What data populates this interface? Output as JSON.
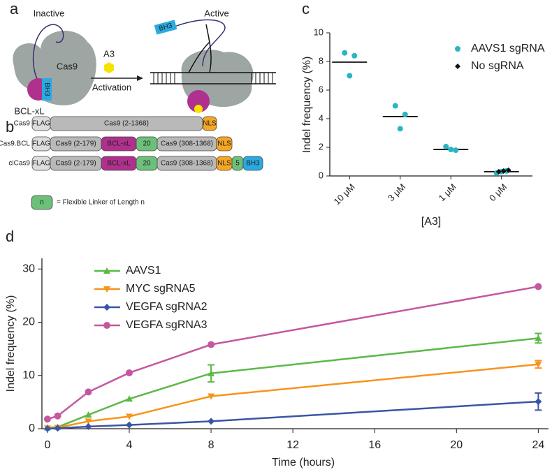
{
  "panel_labels": [
    "a",
    "b",
    "c",
    "d"
  ],
  "panel_a": {
    "inactive": "Inactive",
    "active": "Active",
    "cas9": "Cas9",
    "bh3_left": "BH3",
    "bcl": "BCL-xL",
    "a3": "A3",
    "activation": "Activation",
    "bh3_right": "BH3"
  },
  "panel_b": {
    "rows": [
      {
        "label": "Cas9",
        "segments": [
          "FLAG",
          "Cas9 (2-1368)",
          "NLS"
        ]
      },
      {
        "label": "Cas9.BCL",
        "segments": [
          "FLAG",
          "Cas9 (2-179)",
          "BCL-xL",
          "20",
          "Cas9 (308-1368)",
          "NLS"
        ]
      },
      {
        "label": "ciCas9",
        "segments": [
          "FLAG",
          "Cas9 (2-179)",
          "BCL-xL",
          "20",
          "Cas9 (308-1368)",
          "NLS",
          "5",
          "BH3"
        ]
      }
    ],
    "legend_symbol": "n",
    "legend_text": "= Flexible Linker of Length n"
  },
  "chart_data": [
    {
      "type": "dot",
      "y_label": "Indel frequency (%)",
      "x_label": "[A3]",
      "categories": [
        "10 μM",
        "3 μM",
        "1 μM",
        "0 μM"
      ],
      "ylim": [
        0,
        10
      ],
      "yticks": [
        0,
        2,
        4,
        6,
        8,
        10
      ],
      "legend": "upper right",
      "means": [
        7.95,
        4.15,
        1.85,
        0.3
      ],
      "series": [
        {
          "name": "AAVS1 sgRNA",
          "color": "#2bb5c2",
          "marker": "circle",
          "values": [
            [
              8.6,
              8.4,
              7.0
            ],
            [
              4.9,
              4.3,
              3.3
            ],
            [
              2.05,
              1.8,
              1.85
            ],
            [
              0.2,
              0.35,
              0.3
            ]
          ]
        },
        {
          "name": "No sgRNA",
          "color": "#111111",
          "marker": "diamond",
          "values": [
            null,
            null,
            null,
            [
              0.3,
              0.4,
              0.35
            ]
          ]
        }
      ]
    },
    {
      "type": "line",
      "x_label": "Time (hours)",
      "y_label": "Indel frequency (%)",
      "x": [
        0,
        0.5,
        2,
        4,
        8,
        24
      ],
      "xlim": [
        -0.27,
        24.5
      ],
      "xticks": [
        0,
        4,
        8,
        12,
        16,
        20,
        24
      ],
      "ylim": [
        0,
        32
      ],
      "yticks": [
        0,
        10,
        20,
        30
      ],
      "legend": "upper left",
      "series": [
        {
          "name": "AAVS1",
          "color": "#5cb946",
          "marker": "triangle-up",
          "values": [
            0.2,
            0.3,
            2.6,
            5.6,
            10.4,
            17
          ],
          "errors": [
            null,
            null,
            null,
            null,
            1.6,
            0.9
          ]
        },
        {
          "name": "MYC sgRNA5",
          "color": "#f7941d",
          "marker": "triangle-down",
          "values": [
            0.1,
            0.2,
            1.4,
            2.3,
            6.1,
            12.1
          ],
          "errors": [
            null,
            null,
            null,
            null,
            null,
            0.7
          ]
        },
        {
          "name": "VEGFA sgRNA2",
          "color": "#3b55a5",
          "marker": "diamond",
          "values": [
            0,
            0.1,
            0.4,
            0.7,
            1.4,
            5.1
          ],
          "errors": [
            null,
            null,
            null,
            null,
            null,
            1.6
          ]
        },
        {
          "name": "VEGFA sgRNA3",
          "color": "#c557a0",
          "marker": "circle",
          "values": [
            1.8,
            2.4,
            6.9,
            10.5,
            15.8,
            26.7
          ],
          "errors": [
            null,
            null,
            null,
            null,
            null,
            null
          ]
        }
      ]
    }
  ]
}
